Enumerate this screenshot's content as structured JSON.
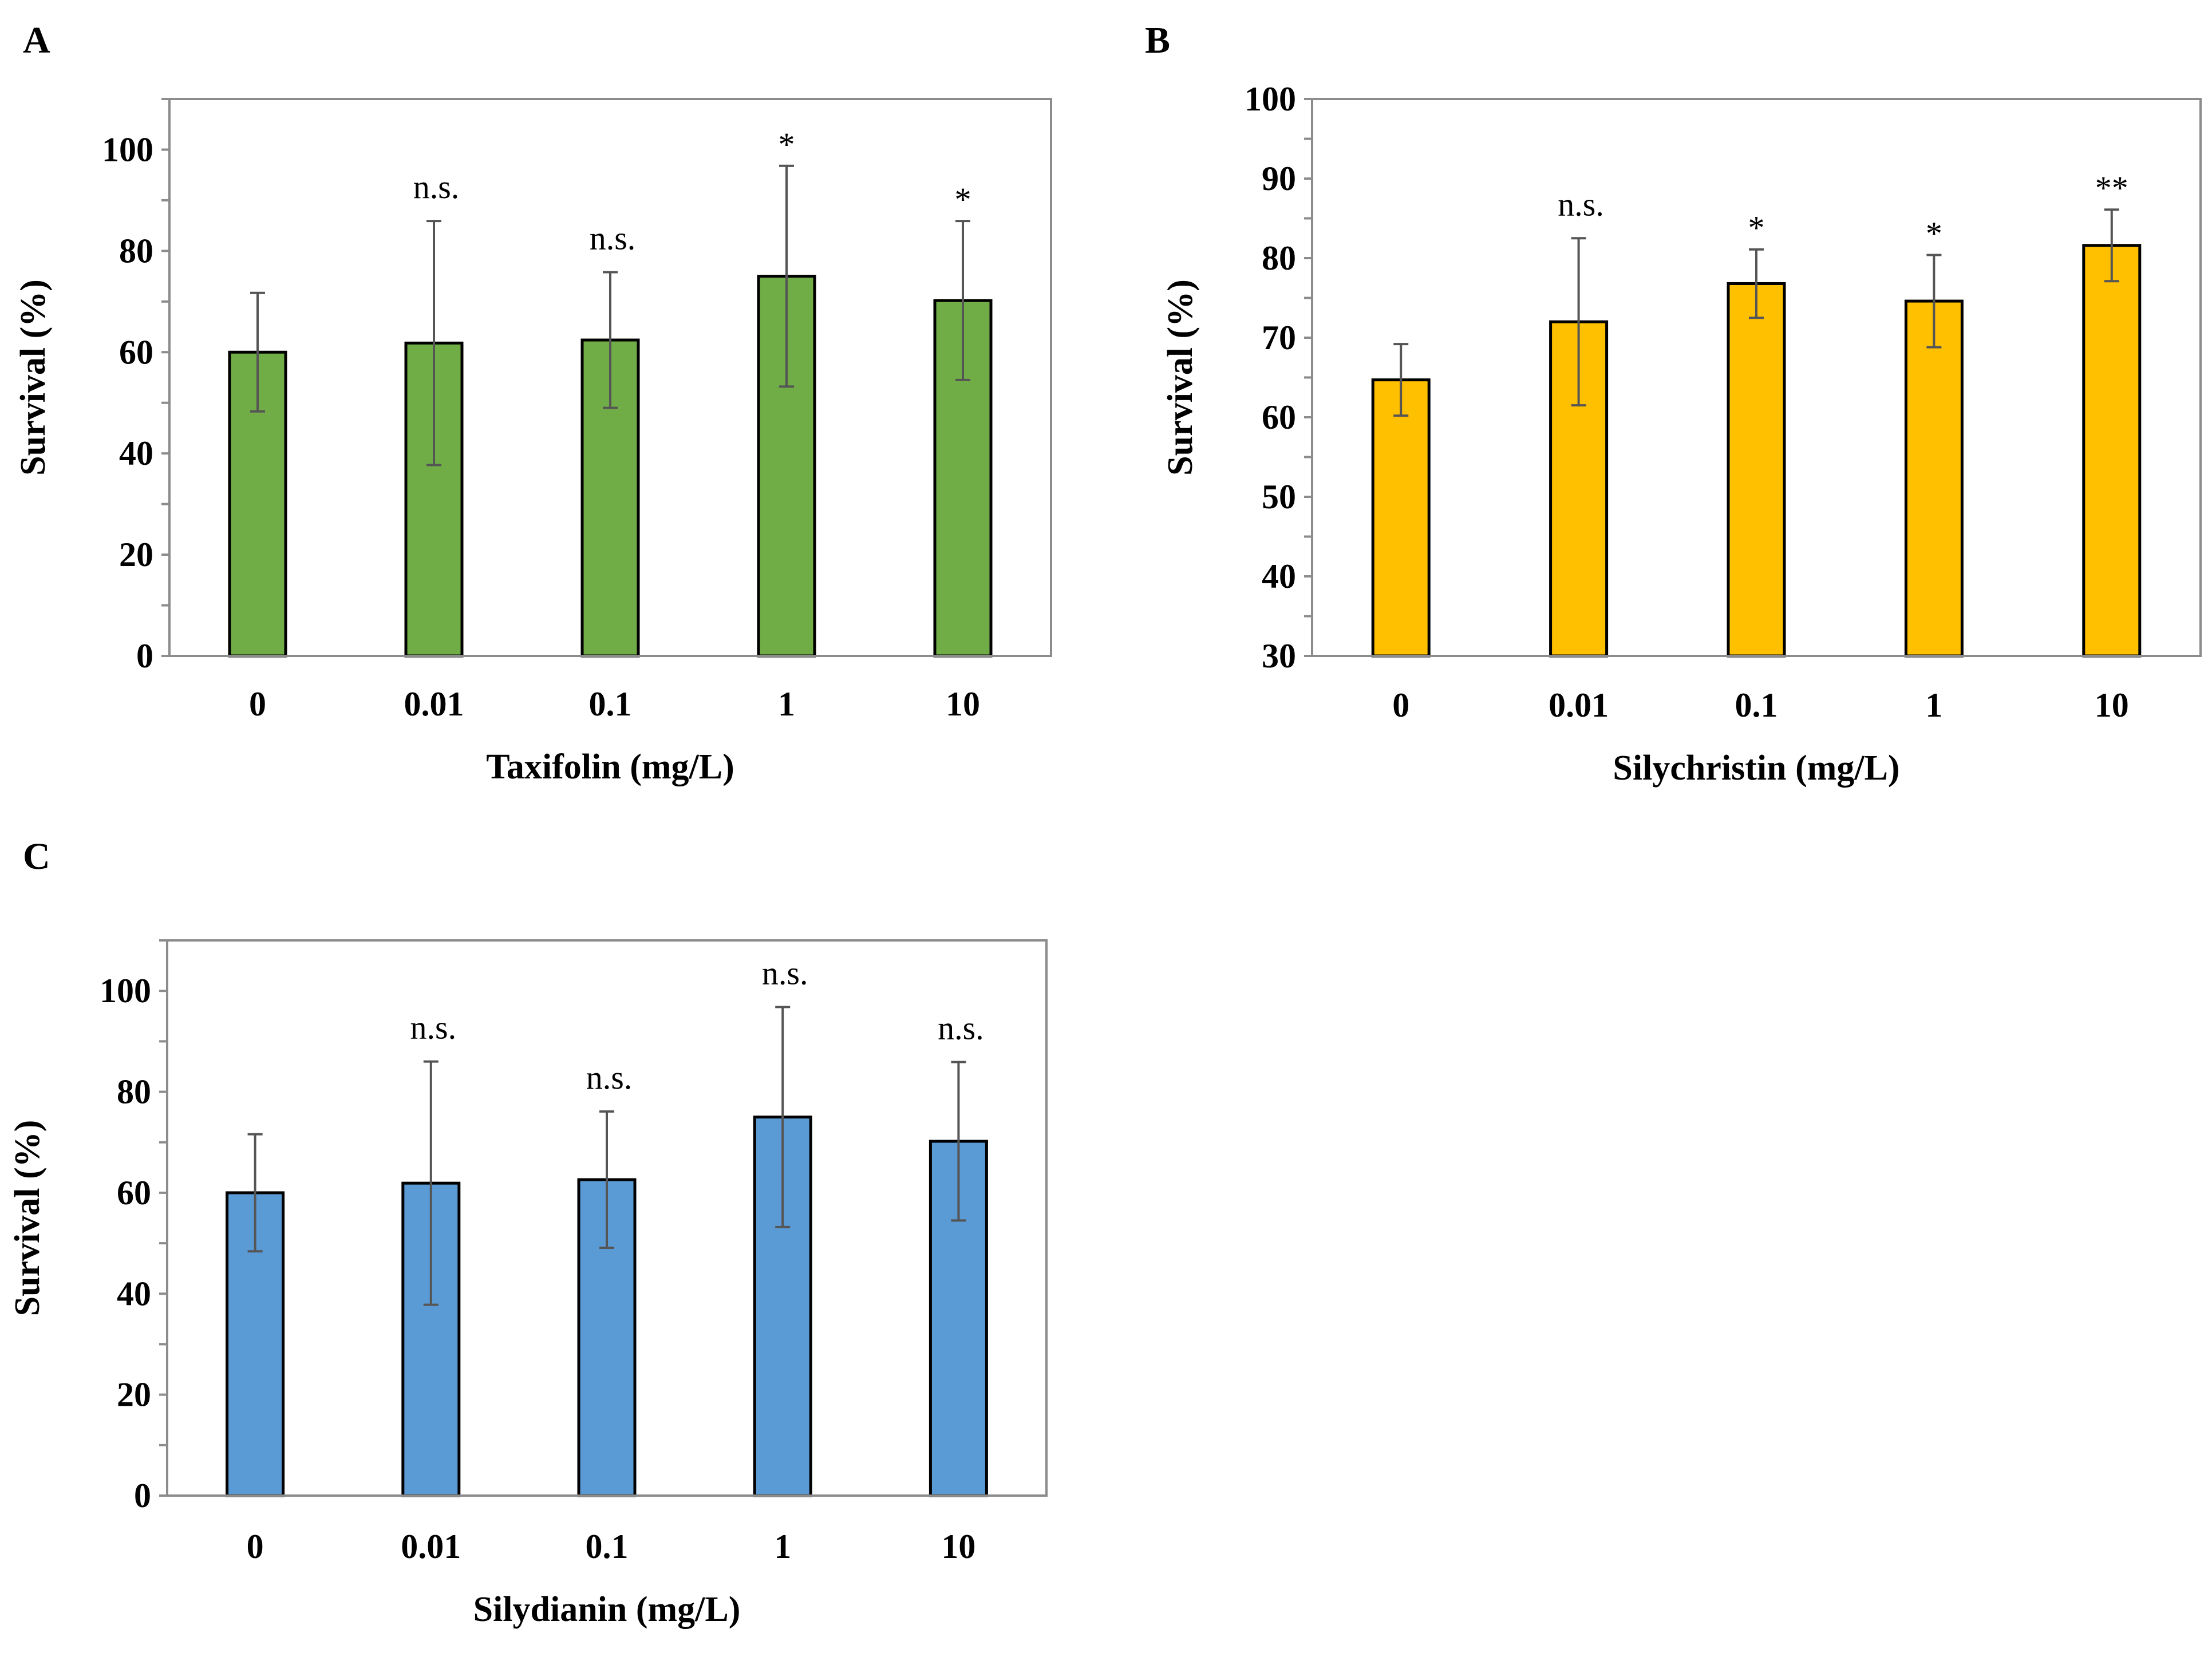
{
  "chart_data": [
    {
      "type": "bar",
      "panel_label": "A",
      "categories": [
        "0",
        "0.01",
        "0.1",
        "1",
        "10"
      ],
      "values": [
        60,
        61.8,
        62.4,
        75,
        70.2
      ],
      "errors": [
        11.7,
        24.1,
        13.4,
        21.8,
        15.7
      ],
      "significance": [
        "",
        "n.s.",
        "n.s.",
        "*",
        "*"
      ],
      "title": "",
      "xlabel": "Taxifolin (mg/L)",
      "ylabel": "Survival (%)",
      "ylim": [
        0,
        110
      ],
      "yticks": [
        0,
        20,
        40,
        60,
        80,
        100
      ],
      "color": "#70AD47"
    },
    {
      "type": "bar",
      "panel_label": "B",
      "categories": [
        "0",
        "0.01",
        "0.1",
        "1",
        "10"
      ],
      "values": [
        64.7,
        72,
        76.8,
        74.6,
        81.6
      ],
      "errors": [
        4.5,
        10.5,
        4.3,
        5.8,
        4.5
      ],
      "significance": [
        "",
        "n.s.",
        "*",
        "*",
        "**"
      ],
      "title": "",
      "xlabel": "Silychristin (mg/L)",
      "ylabel": "Survival (%)",
      "ylim": [
        30,
        100
      ],
      "yticks": [
        30,
        40,
        50,
        60,
        70,
        80,
        90,
        100
      ],
      "color": "#FFC000"
    },
    {
      "type": "bar",
      "panel_label": "C",
      "categories": [
        "0",
        "0.01",
        "0.1",
        "1",
        "10"
      ],
      "values": [
        60,
        61.9,
        62.6,
        75,
        70.2
      ],
      "errors": [
        11.6,
        24.1,
        13.5,
        21.8,
        15.7
      ],
      "significance": [
        "",
        "n.s.",
        "n.s.",
        "n.s.",
        "n.s."
      ],
      "title": "",
      "xlabel": "Silydianin (mg/L)",
      "ylabel": "Survival (%)",
      "ylim": [
        0,
        110
      ],
      "yticks": [
        0,
        20,
        40,
        60,
        80,
        100
      ],
      "color": "#5B9BD5"
    }
  ]
}
